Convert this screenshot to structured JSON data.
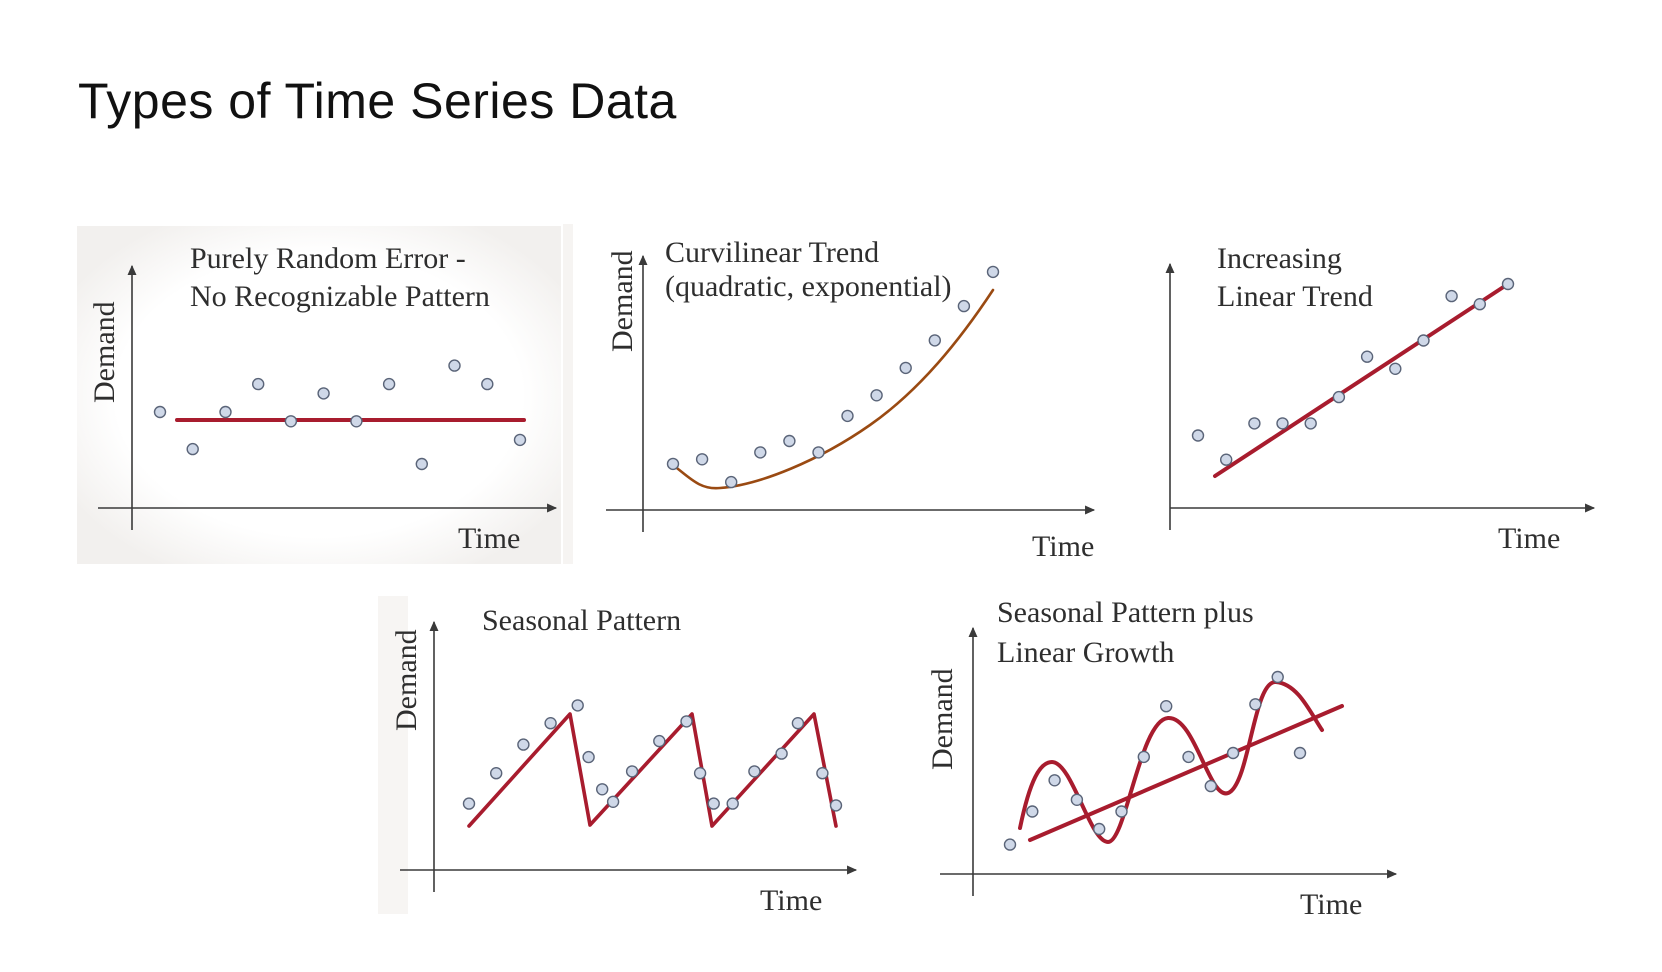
{
  "page": {
    "title": "Types of Time Series Data"
  },
  "colors": {
    "fit_line": "#a81c2e",
    "curve": "#9a4a12",
    "points_fill": "#cfd8e8",
    "points_stroke": "#5a6478"
  },
  "panels": [
    {
      "id": "random",
      "title_lines": [
        "Purely Random Error -",
        "No Recognizable Pattern"
      ],
      "xlabel": "Time",
      "ylabel": "Demand",
      "fit": "horizontal line",
      "points": [
        [
          1,
          4.2
        ],
        [
          2,
          2.2
        ],
        [
          3,
          4.2
        ],
        [
          4,
          5.7
        ],
        [
          5,
          3.7
        ],
        [
          6,
          5.2
        ],
        [
          7,
          3.7
        ],
        [
          8,
          5.7
        ],
        [
          9,
          1.4
        ],
        [
          10,
          6.7
        ],
        [
          11,
          5.7
        ],
        [
          12,
          2.7
        ]
      ]
    },
    {
      "id": "curvilinear",
      "title_lines": [
        "Curvilinear Trend",
        "(quadratic, exponential)"
      ],
      "xlabel": "Time",
      "ylabel": "Demand",
      "fit": "curve",
      "points": [
        [
          1,
          1.8
        ],
        [
          2,
          2.0
        ],
        [
          3,
          1.0
        ],
        [
          4,
          2.3
        ],
        [
          5,
          2.8
        ],
        [
          6,
          2.3
        ],
        [
          7,
          3.9
        ],
        [
          8,
          4.8
        ],
        [
          9,
          6.0
        ],
        [
          10,
          7.2
        ],
        [
          11,
          8.7
        ],
        [
          12,
          10.2
        ]
      ]
    },
    {
      "id": "linear",
      "title_lines": [
        "Increasing",
        "Linear Trend"
      ],
      "xlabel": "Time",
      "ylabel": "Demand",
      "fit": "straight line",
      "points": [
        [
          1,
          2.7
        ],
        [
          2,
          1.5
        ],
        [
          3,
          3.3
        ],
        [
          4,
          3.3
        ],
        [
          5,
          3.3
        ],
        [
          6,
          4.6
        ],
        [
          7,
          6.6
        ],
        [
          8,
          6.0
        ],
        [
          9,
          7.4
        ],
        [
          10,
          9.6
        ],
        [
          11,
          9.2
        ],
        [
          12,
          10.2
        ]
      ]
    },
    {
      "id": "seasonal",
      "title_lines": [
        "Seasonal Pattern"
      ],
      "xlabel": "Time",
      "ylabel": "Demand",
      "fit": "sawtooth",
      "points": [
        [
          1,
          2.6
        ],
        [
          2,
          4.3
        ],
        [
          3,
          5.9
        ],
        [
          4,
          7.1
        ],
        [
          5,
          8.1
        ],
        [
          5.4,
          5.2
        ],
        [
          5.9,
          3.4
        ],
        [
          6.3,
          2.7
        ],
        [
          7,
          4.4
        ],
        [
          8,
          6.1
        ],
        [
          9,
          7.2
        ],
        [
          9.5,
          4.3
        ],
        [
          10,
          2.6
        ],
        [
          10.7,
          2.6
        ],
        [
          11.5,
          4.4
        ],
        [
          12.5,
          5.4
        ],
        [
          13.1,
          7.1
        ],
        [
          14,
          4.3
        ],
        [
          14.5,
          2.5
        ]
      ]
    },
    {
      "id": "seasonal-growth",
      "title_lines": [
        "Seasonal Pattern plus",
        "Linear Growth"
      ],
      "xlabel": "Time",
      "ylabel": "Demand",
      "fit": "sine around line",
      "points": [
        [
          1,
          1.3
        ],
        [
          2,
          3.0
        ],
        [
          3,
          4.6
        ],
        [
          4,
          3.6
        ],
        [
          5,
          2.1
        ],
        [
          6,
          3.0
        ],
        [
          7,
          5.8
        ],
        [
          8,
          8.4
        ],
        [
          9,
          5.8
        ],
        [
          10,
          4.3
        ],
        [
          11,
          6.0
        ],
        [
          12,
          8.5
        ],
        [
          13,
          9.9
        ],
        [
          14,
          6.0
        ]
      ]
    }
  ]
}
